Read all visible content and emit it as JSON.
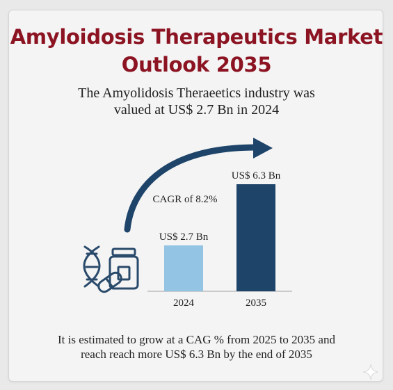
{
  "header": {
    "title_line1": "Amyloidosis Therapeutics Market",
    "title_line2": "Outlook 2035",
    "intro_line1": "The Amyolidosis Theraeetics industry was",
    "intro_line2": "valued at US$ 2.7 Bn in 2024"
  },
  "chart_data": {
    "type": "bar",
    "categories": [
      "2024",
      "2035"
    ],
    "values": [
      2.7,
      6.3
    ],
    "value_labels": [
      "US$ 2.7 Bn",
      "US$ 6.3 Bn"
    ],
    "annotation": "CAGR of 8.2%",
    "title": "",
    "xlabel": "",
    "ylabel": "",
    "ylim": [
      0,
      6.3
    ],
    "grid": false,
    "colors": [
      "#94c4e4",
      "#1f4469"
    ]
  },
  "icons": [
    "dna-icon",
    "medicine-bottle-icon",
    "pill-capsule-icon",
    "sparkle-icon"
  ],
  "colors": {
    "title": "#8c1422",
    "arrow": "#1f4469",
    "icon_stroke": "#2a4a6b"
  },
  "footer": {
    "line1": "It is estimated to grow at a CAG % from 2025 to 2035 and",
    "line2": "reach reach more US$ 6.3 Bn by the end of 2035"
  }
}
